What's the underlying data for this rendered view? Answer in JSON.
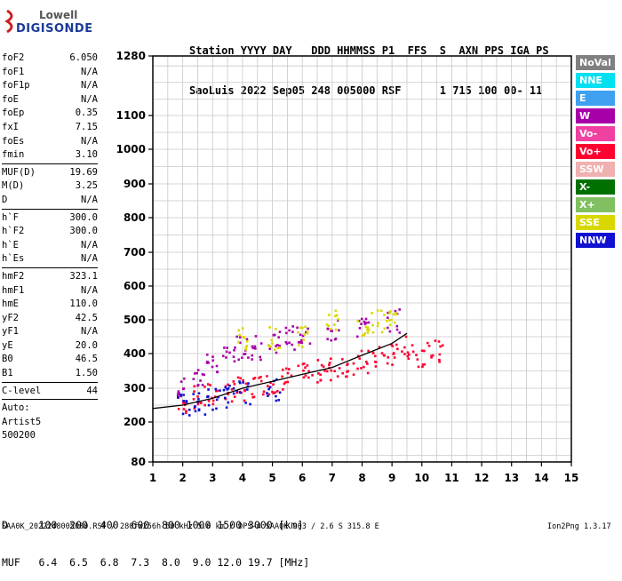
{
  "logo": {
    "line1": "Lowell",
    "line2": "DIGISONDE"
  },
  "header": {
    "labels": "Station YYYY DAY   DDD HHMMSS P1  FFS  S  AXN PPS IGA PS",
    "values": "SaoLuis 2022 Sep05 248 005000 RSF      1 715 100 00- 11"
  },
  "params": {
    "group1": [
      {
        "name": "foF2",
        "value": "6.050"
      },
      {
        "name": "foF1",
        "value": "N/A"
      },
      {
        "name": "foF1p",
        "value": "N/A"
      },
      {
        "name": "foE",
        "value": "N/A"
      },
      {
        "name": "foEp",
        "value": "0.35"
      },
      {
        "name": "fxI",
        "value": "7.15"
      },
      {
        "name": "foEs",
        "value": "N/A"
      },
      {
        "name": "fmin",
        "value": "3.10"
      }
    ],
    "group2": [
      {
        "name": "MUF(D)",
        "value": "19.69"
      },
      {
        "name": "M(D)",
        "value": "3.25"
      },
      {
        "name": "D",
        "value": "N/A"
      }
    ],
    "group3": [
      {
        "name": "h`F",
        "value": "300.0"
      },
      {
        "name": "h`F2",
        "value": "300.0"
      },
      {
        "name": "h`E",
        "value": "N/A"
      },
      {
        "name": "h`Es",
        "value": "N/A"
      }
    ],
    "group4": [
      {
        "name": "hmF2",
        "value": "323.1"
      },
      {
        "name": "hmF1",
        "value": "N/A"
      },
      {
        "name": "hmE",
        "value": "110.0"
      },
      {
        "name": "yF2",
        "value": "42.5"
      },
      {
        "name": "yF1",
        "value": "N/A"
      },
      {
        "name": "yE",
        "value": "20.0"
      },
      {
        "name": "B0",
        "value": "46.5"
      },
      {
        "name": "B1",
        "value": "1.50"
      }
    ],
    "clevel": {
      "name": "C-level",
      "value": "44"
    },
    "auto": [
      "Auto:",
      "Artist5",
      "500200"
    ]
  },
  "legend": [
    {
      "label": "NoVal",
      "color": "#808080"
    },
    {
      "label": "NNE",
      "color": "#00e0f0"
    },
    {
      "label": "E",
      "color": "#3fa0f0"
    },
    {
      "label": "W",
      "color": "#a800a8"
    },
    {
      "label": "Vo-",
      "color": "#f040a0"
    },
    {
      "label": "Vo+",
      "color": "#ff0030"
    },
    {
      "label": "SSW",
      "color": "#f0b0b0"
    },
    {
      "label": "X-",
      "color": "#007000"
    },
    {
      "label": "X+",
      "color": "#80c060"
    },
    {
      "label": "SSE",
      "color": "#d8d800"
    },
    {
      "label": "NNW",
      "color": "#1010d0"
    }
  ],
  "chart_data": {
    "type": "scatter",
    "title": "",
    "xlabel": "",
    "ylabel": "",
    "xlim": [
      1,
      15
    ],
    "ylim": [
      80,
      1280
    ],
    "x_ticks": [
      "1",
      "2",
      "3",
      "4",
      "5",
      "6",
      "7",
      "8",
      "9",
      "10",
      "11",
      "12",
      "13",
      "14",
      "15"
    ],
    "y_ticks": [
      "80",
      "200",
      "300",
      "400",
      "500",
      "600",
      "700",
      "800",
      "900",
      "1000",
      "1100",
      "1280"
    ],
    "grid": true,
    "series": [
      {
        "name": "Vo+",
        "color": "#ff0030",
        "points": [
          [
            2.0,
            260
          ],
          [
            2.5,
            275
          ],
          [
            3,
            285
          ],
          [
            3.5,
            290
          ],
          [
            4,
            300
          ],
          [
            4.5,
            310
          ],
          [
            5,
            320
          ],
          [
            5.5,
            330
          ],
          [
            6,
            340
          ],
          [
            6.5,
            350
          ],
          [
            7,
            360
          ],
          [
            7.5,
            370
          ],
          [
            8,
            380
          ],
          [
            8.5,
            390
          ],
          [
            9,
            400
          ],
          [
            9.5,
            420
          ],
          [
            10,
            400
          ],
          [
            10.5,
            410
          ]
        ]
      },
      {
        "name": "W",
        "color": "#a800a8",
        "points": [
          [
            2,
            300
          ],
          [
            2.5,
            330
          ],
          [
            3,
            380
          ],
          [
            3.5,
            400
          ],
          [
            4,
            420
          ],
          [
            4.5,
            420
          ],
          [
            5,
            440
          ],
          [
            5.5,
            450
          ],
          [
            6,
            460
          ],
          [
            7,
            470
          ],
          [
            8,
            480
          ],
          [
            9,
            500
          ]
        ]
      },
      {
        "name": "SSE",
        "color": "#d8d800",
        "points": [
          [
            4,
            450
          ],
          [
            5,
            450
          ],
          [
            6,
            450
          ],
          [
            7,
            500
          ],
          [
            8,
            480
          ],
          [
            8.5,
            500
          ],
          [
            9,
            520
          ]
        ]
      },
      {
        "name": "NNW",
        "color": "#1010d0",
        "points": [
          [
            2,
            250
          ],
          [
            2.5,
            260
          ],
          [
            3,
            270
          ],
          [
            3.5,
            280
          ],
          [
            4,
            290
          ],
          [
            5,
            300
          ]
        ]
      }
    ],
    "trace_line": {
      "name": "",
      "points": [
        [
          1.0,
          240
        ],
        [
          2,
          250
        ],
        [
          3,
          270
        ],
        [
          4,
          300
        ],
        [
          5,
          320
        ],
        [
          6,
          340
        ],
        [
          7,
          360
        ],
        [
          8,
          395
        ],
        [
          9,
          430
        ],
        [
          9.5,
          460
        ]
      ]
    }
  },
  "bottom": {
    "dline": "D     100  200  400  600  800 1000 1500 3000 [km]",
    "mufline": "MUF   6.4  6.5  6.8  7.3  8.0  9.0 12.0 19.7 [MHz]"
  },
  "footer": {
    "left": "SAA0K_2022248005000.RSF / 280fx256h 50 kHz 5.0 km / DPS-4 SAA0K 903 / 2.6 S 315.8 E",
    "right": "Ion2Png 1.3.17"
  }
}
